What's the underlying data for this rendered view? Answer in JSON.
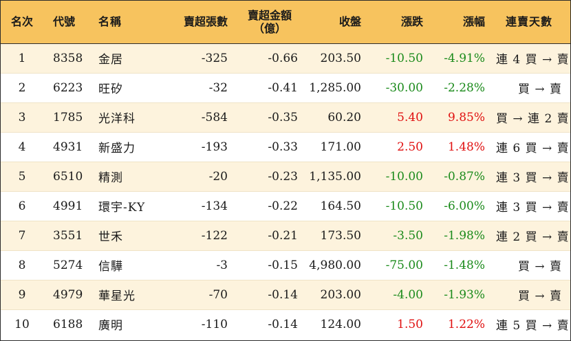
{
  "headers": {
    "rank": "名次",
    "code": "代號",
    "name": "名稱",
    "net_sell_lots": "賣超張數",
    "net_sell_amount": "賣超金額\n（億）",
    "close": "收盤",
    "change": "漲跌",
    "pct": "漲幅",
    "streak": "連賣天數"
  },
  "colors": {
    "header_bg": "#f7c35e",
    "row_alt_bg": "#fdf3dd",
    "up": "#e01010",
    "down": "#1a8a1a"
  },
  "rows": [
    {
      "rank": "1",
      "code": "8358",
      "name": "金居",
      "lots": "-325",
      "amount": "-0.66",
      "close": "203.50",
      "change": "-10.50",
      "pct": "-4.91%",
      "dir": "down",
      "streak": "連 4 買 → 賣"
    },
    {
      "rank": "2",
      "code": "6223",
      "name": "旺矽",
      "lots": "-32",
      "amount": "-0.41",
      "close": "1,285.00",
      "change": "-30.00",
      "pct": "-2.28%",
      "dir": "down",
      "streak": "買 → 賣"
    },
    {
      "rank": "3",
      "code": "1785",
      "name": "光洋科",
      "lots": "-584",
      "amount": "-0.35",
      "close": "60.20",
      "change": "5.40",
      "pct": "9.85%",
      "dir": "up",
      "streak": "買 → 連 2 賣"
    },
    {
      "rank": "4",
      "code": "4931",
      "name": "新盛力",
      "lots": "-193",
      "amount": "-0.33",
      "close": "171.00",
      "change": "2.50",
      "pct": "1.48%",
      "dir": "up",
      "streak": "連 6 買 → 賣"
    },
    {
      "rank": "5",
      "code": "6510",
      "name": "精測",
      "lots": "-20",
      "amount": "-0.23",
      "close": "1,135.00",
      "change": "-10.00",
      "pct": "-0.87%",
      "dir": "down",
      "streak": "連 3 買 → 賣"
    },
    {
      "rank": "6",
      "code": "4991",
      "name": "環宇-KY",
      "lots": "-134",
      "amount": "-0.22",
      "close": "164.50",
      "change": "-10.50",
      "pct": "-6.00%",
      "dir": "down",
      "streak": "連 3 買 → 賣"
    },
    {
      "rank": "7",
      "code": "3551",
      "name": "世禾",
      "lots": "-122",
      "amount": "-0.21",
      "close": "173.50",
      "change": "-3.50",
      "pct": "-1.98%",
      "dir": "down",
      "streak": "連 2 買 → 賣"
    },
    {
      "rank": "8",
      "code": "5274",
      "name": "信驊",
      "lots": "-3",
      "amount": "-0.15",
      "close": "4,980.00",
      "change": "-75.00",
      "pct": "-1.48%",
      "dir": "down",
      "streak": "買 → 賣"
    },
    {
      "rank": "9",
      "code": "4979",
      "name": "華星光",
      "lots": "-70",
      "amount": "-0.14",
      "close": "203.00",
      "change": "-4.00",
      "pct": "-1.93%",
      "dir": "down",
      "streak": "買 → 賣"
    },
    {
      "rank": "10",
      "code": "6188",
      "name": "廣明",
      "lots": "-110",
      "amount": "-0.14",
      "close": "124.00",
      "change": "1.50",
      "pct": "1.22%",
      "dir": "up",
      "streak": "連 5 買 → 賣"
    }
  ]
}
